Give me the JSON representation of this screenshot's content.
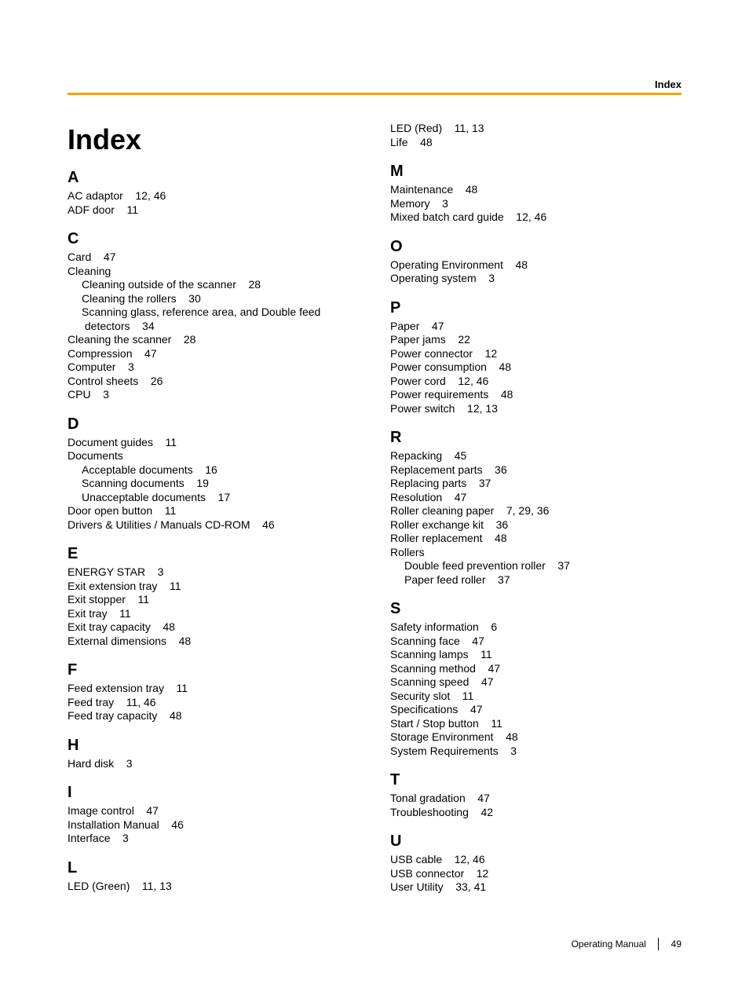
{
  "header_label": "Index",
  "title": "Index",
  "footer_label": "Operating Manual",
  "page_number": "49",
  "left": [
    {
      "letter": "A",
      "entries": [
        {
          "t": "AC adaptor    12, 46"
        },
        {
          "t": "ADF door    11"
        }
      ]
    },
    {
      "letter": "C",
      "entries": [
        {
          "t": "Card    47"
        },
        {
          "t": "Cleaning"
        },
        {
          "t": "Cleaning outside of the scanner    28",
          "sub": true
        },
        {
          "t": "Cleaning the rollers    30",
          "sub": true
        },
        {
          "t": "Scanning glass, reference area, and Double feed",
          "sub": true
        },
        {
          "t": " detectors    34",
          "sub": true
        },
        {
          "t": "Cleaning the scanner    28"
        },
        {
          "t": "Compression    47"
        },
        {
          "t": "Computer    3"
        },
        {
          "t": "Control sheets    26"
        },
        {
          "t": "CPU    3"
        }
      ]
    },
    {
      "letter": "D",
      "entries": [
        {
          "t": "Document guides    11"
        },
        {
          "t": "Documents"
        },
        {
          "t": "Acceptable documents    16",
          "sub": true
        },
        {
          "t": "Scanning documents    19",
          "sub": true
        },
        {
          "t": "Unacceptable documents    17",
          "sub": true
        },
        {
          "t": "Door open button    11"
        },
        {
          "t": "Drivers & Utilities / Manuals CD-ROM    46"
        }
      ]
    },
    {
      "letter": "E",
      "entries": [
        {
          "t": "ENERGY STAR    3"
        },
        {
          "t": "Exit extension tray    11"
        },
        {
          "t": "Exit stopper    11"
        },
        {
          "t": "Exit tray    11"
        },
        {
          "t": "Exit tray capacity    48"
        },
        {
          "t": "External dimensions    48"
        }
      ]
    },
    {
      "letter": "F",
      "entries": [
        {
          "t": "Feed extension tray    11"
        },
        {
          "t": "Feed tray    11, 46"
        },
        {
          "t": "Feed tray capacity    48"
        }
      ]
    },
    {
      "letter": "H",
      "entries": [
        {
          "t": "Hard disk    3"
        }
      ]
    },
    {
      "letter": "I",
      "entries": [
        {
          "t": "Image control    47"
        },
        {
          "t": "Installation Manual    46"
        },
        {
          "t": "Interface    3"
        }
      ]
    },
    {
      "letter": "L",
      "entries": [
        {
          "t": "LED (Green)    11, 13"
        }
      ]
    }
  ],
  "right_top": [
    {
      "t": "LED (Red)    11, 13"
    },
    {
      "t": "Life    48"
    }
  ],
  "right": [
    {
      "letter": "M",
      "entries": [
        {
          "t": "Maintenance    48"
        },
        {
          "t": "Memory    3"
        },
        {
          "t": "Mixed batch card guide    12, 46"
        }
      ]
    },
    {
      "letter": "O",
      "entries": [
        {
          "t": "Operating Environment    48"
        },
        {
          "t": "Operating system    3"
        }
      ]
    },
    {
      "letter": "P",
      "entries": [
        {
          "t": "Paper    47"
        },
        {
          "t": "Paper jams    22"
        },
        {
          "t": "Power connector    12"
        },
        {
          "t": "Power consumption    48"
        },
        {
          "t": "Power cord    12, 46"
        },
        {
          "t": "Power requirements    48"
        },
        {
          "t": "Power switch    12, 13"
        }
      ]
    },
    {
      "letter": "R",
      "entries": [
        {
          "t": "Repacking    45"
        },
        {
          "t": "Replacement parts    36"
        },
        {
          "t": "Replacing parts    37"
        },
        {
          "t": "Resolution    47"
        },
        {
          "t": "Roller cleaning paper    7, 29, 36"
        },
        {
          "t": "Roller exchange kit    36"
        },
        {
          "t": "Roller replacement    48"
        },
        {
          "t": "Rollers"
        },
        {
          "t": "Double feed prevention roller    37",
          "sub": true
        },
        {
          "t": "Paper feed roller    37",
          "sub": true
        }
      ]
    },
    {
      "letter": "S",
      "entries": [
        {
          "t": "Safety information    6"
        },
        {
          "t": "Scanning face    47"
        },
        {
          "t": "Scanning lamps    11"
        },
        {
          "t": "Scanning method    47"
        },
        {
          "t": "Scanning speed    47"
        },
        {
          "t": "Security slot    11"
        },
        {
          "t": "Specifications    47"
        },
        {
          "t": "Start / Stop button    11"
        },
        {
          "t": "Storage Environment    48"
        },
        {
          "t": "System Requirements    3"
        }
      ]
    },
    {
      "letter": "T",
      "entries": [
        {
          "t": "Tonal gradation    47"
        },
        {
          "t": "Troubleshooting    42"
        }
      ]
    },
    {
      "letter": "U",
      "entries": [
        {
          "t": "USB cable    12, 46"
        },
        {
          "t": "USB connector    12"
        },
        {
          "t": "User Utility    33, 41"
        }
      ]
    }
  ]
}
